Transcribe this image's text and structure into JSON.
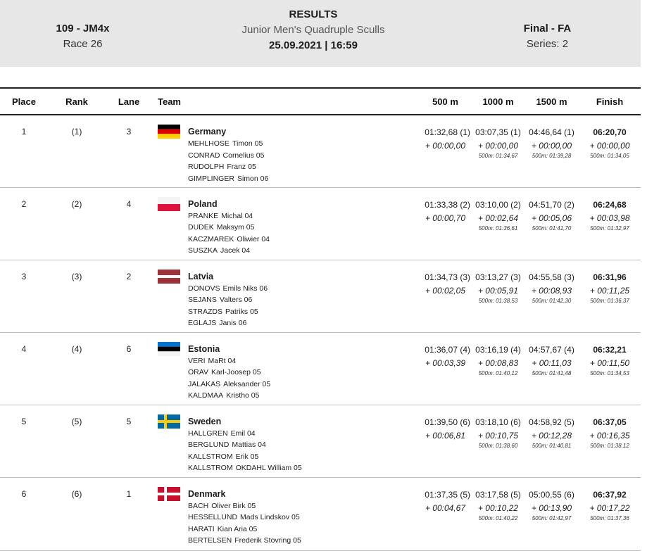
{
  "header": {
    "event_code": "109 - JM4x",
    "race": "Race 26",
    "results_label": "RESULTS",
    "event_name": "Junior Men's Quadruple Sculls",
    "datetime": "25.09.2021 | 16:59",
    "phase": "Final - FA",
    "series": "Series: 2"
  },
  "columns": {
    "place": "Place",
    "rank": "Rank",
    "lane": "Lane",
    "team": "Team",
    "s500": "500 m",
    "s1000": "1000 m",
    "s1500": "1500 m",
    "finish": "Finish"
  },
  "rows": [
    {
      "place": "1",
      "rank": "(1)",
      "lane": "3",
      "country": "Germany",
      "flag": "germany-flag",
      "crew": [
        {
          "family": "MEHLHOSE",
          "given": "Timon 05"
        },
        {
          "family": "CONRAD",
          "given": "Cornelius 05"
        },
        {
          "family": "RUDOLPH",
          "given": "Franz 05"
        },
        {
          "family": "GIMPLINGER",
          "given": "Simon 06"
        }
      ],
      "s500": {
        "time": "01:32,68 (1)",
        "diff": "+ 00:00,00"
      },
      "s1000": {
        "time": "03:07,35 (1)",
        "diff": "+ 00:00,00",
        "pace": "500m: 01:34,67"
      },
      "s1500": {
        "time": "04:46,64 (1)",
        "diff": "+ 00:00,00",
        "pace": "500m: 01:39,28"
      },
      "finish": {
        "time": "06:20,70",
        "diff": "+ 00:00,00",
        "pace": "500m: 01:34,05"
      }
    },
    {
      "place": "2",
      "rank": "(2)",
      "lane": "4",
      "country": "Poland",
      "flag": "poland-flag",
      "crew": [
        {
          "family": "PRANKE",
          "given": "Michal 04"
        },
        {
          "family": "DUDEK",
          "given": "Maksym 05"
        },
        {
          "family": "KACZMAREK",
          "given": "Oliwier 04"
        },
        {
          "family": "SUSZKA",
          "given": "Jacek 04"
        }
      ],
      "s500": {
        "time": "01:33,38 (2)",
        "diff": "+ 00:00,70"
      },
      "s1000": {
        "time": "03:10,00 (2)",
        "diff": "+ 00:02,64",
        "pace": "500m: 01:36,61"
      },
      "s1500": {
        "time": "04:51,70 (2)",
        "diff": "+ 00:05,06",
        "pace": "500m: 01:41,70"
      },
      "finish": {
        "time": "06:24,68",
        "diff": "+ 00:03,98",
        "pace": "500m: 01:32,97"
      }
    },
    {
      "place": "3",
      "rank": "(3)",
      "lane": "2",
      "country": "Latvia",
      "flag": "latvia-flag",
      "crew": [
        {
          "family": "DONOVS",
          "given": "Emils Niks 06"
        },
        {
          "family": "SEJANS",
          "given": "Valters 06"
        },
        {
          "family": "STRAZDS",
          "given": "Patriks 05"
        },
        {
          "family": "EGLAJS",
          "given": "Janis 06"
        }
      ],
      "s500": {
        "time": "01:34,73 (3)",
        "diff": "+ 00:02,05"
      },
      "s1000": {
        "time": "03:13,27 (3)",
        "diff": "+ 00:05,91",
        "pace": "500m: 01:38,53"
      },
      "s1500": {
        "time": "04:55,58 (3)",
        "diff": "+ 00:08,93",
        "pace": "500m: 01:42,30"
      },
      "finish": {
        "time": "06:31,96",
        "diff": "+ 00:11,25",
        "pace": "500m: 01:36,37"
      }
    },
    {
      "place": "4",
      "rank": "(4)",
      "lane": "6",
      "country": "Estonia",
      "flag": "estonia-flag",
      "crew": [
        {
          "family": "VERI",
          "given": "MaRt 04"
        },
        {
          "family": "ORAV",
          "given": "Karl-Joosep 05"
        },
        {
          "family": "JALAKAS",
          "given": "Aleksander 05"
        },
        {
          "family": "KALDMAA",
          "given": "Kristho 05"
        }
      ],
      "s500": {
        "time": "01:36,07 (4)",
        "diff": "+ 00:03,39"
      },
      "s1000": {
        "time": "03:16,19 (4)",
        "diff": "+ 00:08,83",
        "pace": "500m: 01:40,12"
      },
      "s1500": {
        "time": "04:57,67 (4)",
        "diff": "+ 00:11,03",
        "pace": "500m: 01:41,48"
      },
      "finish": {
        "time": "06:32,21",
        "diff": "+ 00:11,50",
        "pace": "500m: 01:34,53"
      }
    },
    {
      "place": "5",
      "rank": "(5)",
      "lane": "5",
      "country": "Sweden",
      "flag": "sweden-flag",
      "crew": [
        {
          "family": "HALLGREN",
          "given": "Emil 04"
        },
        {
          "family": "BERGLUND",
          "given": "Mattias 04"
        },
        {
          "family": "KALLSTROM",
          "given": "Erik 05"
        },
        {
          "family": "KALLSTROM",
          "given": "OKDAHL William 05"
        }
      ],
      "s500": {
        "time": "01:39,50 (6)",
        "diff": "+ 00:06,81"
      },
      "s1000": {
        "time": "03:18,10 (6)",
        "diff": "+ 00:10,75",
        "pace": "500m: 01:38,60"
      },
      "s1500": {
        "time": "04:58,92 (5)",
        "diff": "+ 00:12,28",
        "pace": "500m: 01:40,81"
      },
      "finish": {
        "time": "06:37,05",
        "diff": "+ 00:16,35",
        "pace": "500m: 01:38,12"
      }
    },
    {
      "place": "6",
      "rank": "(6)",
      "lane": "1",
      "country": "Denmark",
      "flag": "denmark-flag",
      "crew": [
        {
          "family": "BACH",
          "given": "Oliver Birk 05"
        },
        {
          "family": "HESSELLUND",
          "given": "Mads Lindskov 05"
        },
        {
          "family": "HARATI",
          "given": "Kian Aria 05"
        },
        {
          "family": "BERTELSEN",
          "given": "Frederik Stovring 05"
        }
      ],
      "s500": {
        "time": "01:37,35 (5)",
        "diff": "+ 00:04,67"
      },
      "s1000": {
        "time": "03:17,58 (5)",
        "diff": "+ 00:10,22",
        "pace": "500m: 01:40,22"
      },
      "s1500": {
        "time": "05:00,55 (6)",
        "diff": "+ 00:13,90",
        "pace": "500m: 01:42,97"
      },
      "finish": {
        "time": "06:37,92",
        "diff": "+ 00:17,22",
        "pace": "500m: 01:37,36"
      }
    }
  ]
}
